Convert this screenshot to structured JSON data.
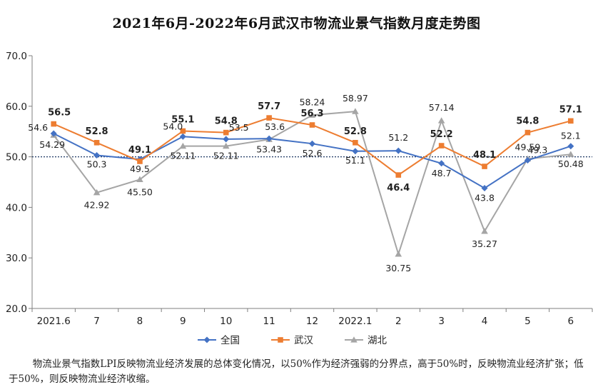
{
  "title": "2021年6月-2022年6月武汉市物流业景气指数月度走势图",
  "footnote": "物流业景气指数LPI反映物流业经济发展的总体变化情况，以50%作为经济强弱的分界点，高于50%时，反映物流业经济扩张；低于50%，则反映物流业经济收缩。",
  "chart_data": {
    "type": "line",
    "title": "2021年6月-2022年6月武汉市物流业景气指数月度走势图",
    "xlabel": "",
    "ylabel": "",
    "categories": [
      "2021.6",
      "7",
      "8",
      "9",
      "10",
      "11",
      "12",
      "2022.1",
      "2",
      "3",
      "4",
      "5",
      "6"
    ],
    "ylim": [
      20,
      70
    ],
    "yticks": [
      "20.0",
      "30.0",
      "40.0",
      "50.0",
      "60.0",
      "70.0"
    ],
    "reference_line": 50,
    "grid": false,
    "legend_position": "bottom",
    "series": [
      {
        "name": "全国",
        "color": "#4472C4",
        "marker": "diamond",
        "values": [
          54.6,
          50.3,
          49.5,
          54.0,
          53.5,
          53.6,
          52.6,
          51.1,
          51.2,
          48.7,
          43.8,
          49.3,
          52.1
        ],
        "labels": [
          "54.6",
          "50.3",
          "49.5",
          "54.0",
          "53.5",
          "53.6",
          "52.6",
          "51.1",
          "51.2",
          "48.7",
          "43.8",
          "49.3",
          "52.1"
        ]
      },
      {
        "name": "武汉",
        "color": "#ED7D31",
        "marker": "square",
        "values": [
          56.5,
          52.8,
          49.1,
          55.1,
          54.8,
          57.7,
          56.3,
          52.8,
          46.4,
          52.2,
          48.1,
          54.8,
          57.1
        ],
        "labels": [
          "56.5",
          "52.8",
          "49.1",
          "55.1",
          "54.8",
          "57.7",
          "56.3",
          "52.8",
          "46.4",
          "52.2",
          "48.1",
          "54.8",
          "57.1"
        ]
      },
      {
        "name": "湖北",
        "color": "#A5A5A5",
        "marker": "triangle",
        "values": [
          54.29,
          42.92,
          45.5,
          52.11,
          52.11,
          53.43,
          58.24,
          58.97,
          30.75,
          57.14,
          35.27,
          49.59,
          50.48
        ],
        "labels": [
          "54.29",
          "42.92",
          "45.50",
          "52.11",
          "52.11",
          "53.43",
          "58.24",
          "58.97",
          "30.75",
          "57.14",
          "35.27",
          "49.59",
          "50.48"
        ]
      }
    ]
  }
}
